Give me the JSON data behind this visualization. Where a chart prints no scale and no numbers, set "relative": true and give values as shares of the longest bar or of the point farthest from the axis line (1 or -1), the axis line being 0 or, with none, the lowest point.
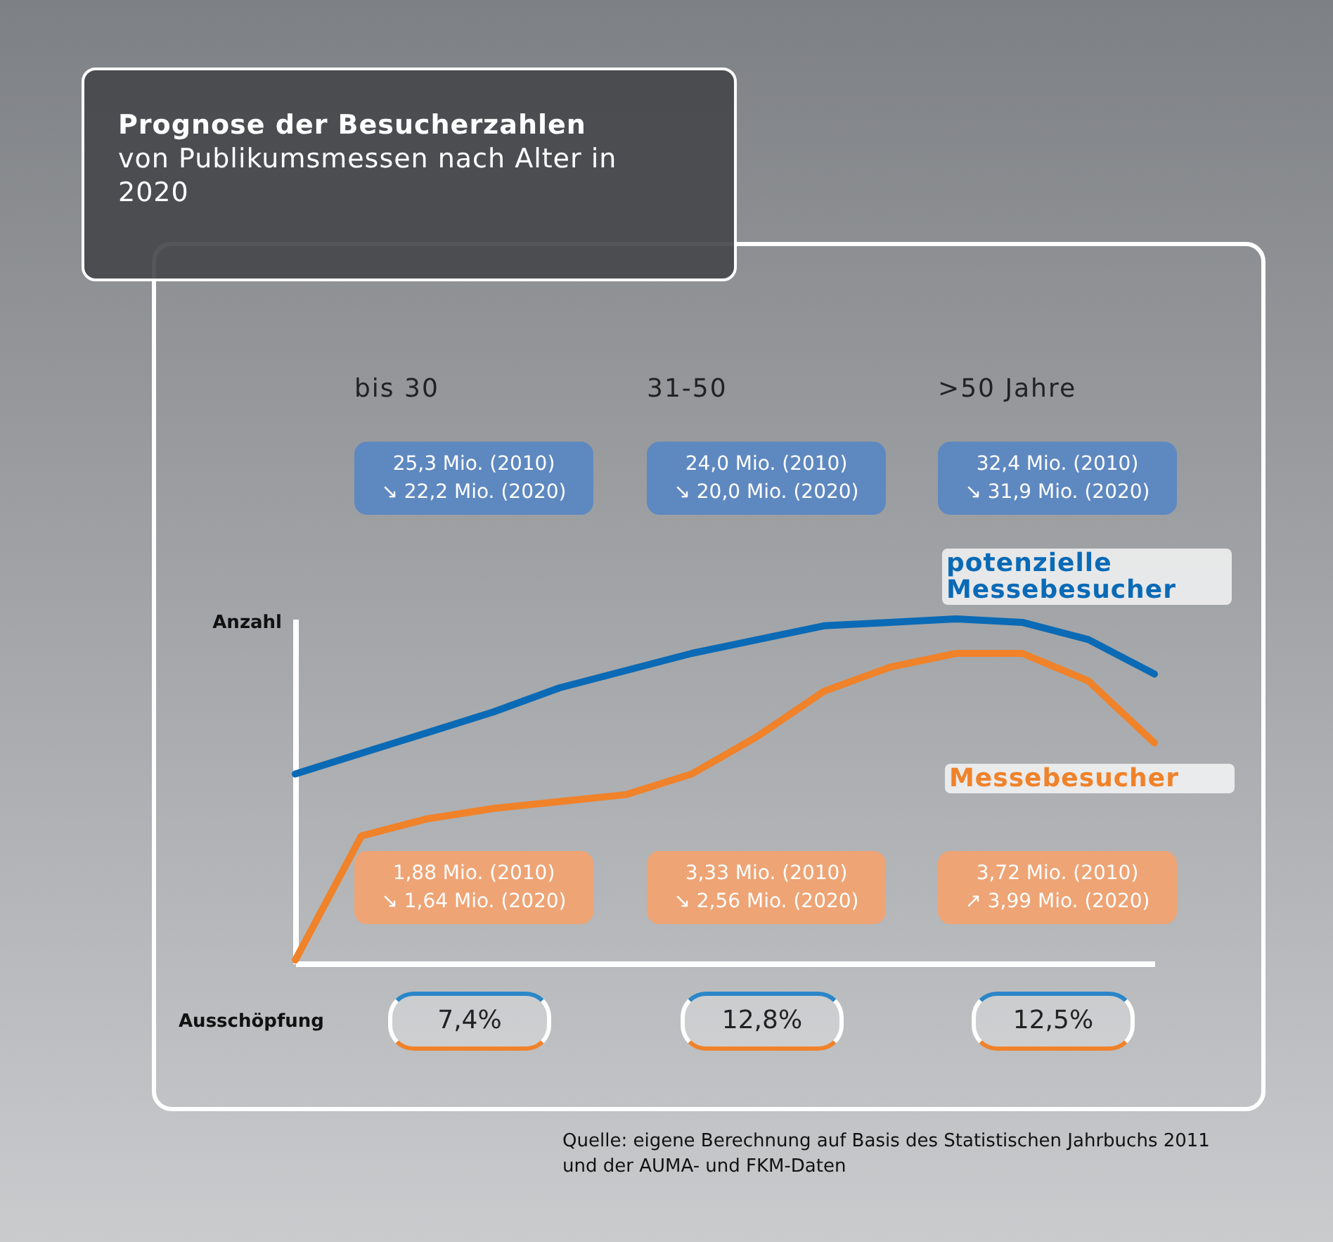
{
  "chart_data": {
    "type": "line",
    "relative": true,
    "title": "Prognose der Besucherzahlen",
    "subtitle": "von Publikumsmessen nach Alter in 2020",
    "ylabel": "Anzahl",
    "categories": [
      null,
      null,
      null,
      null,
      null,
      null,
      null,
      null,
      null,
      null,
      null,
      null,
      null,
      null
    ],
    "series": [
      {
        "name": "potenzielle Messebesucher",
        "color": "#0a6ab6",
        "values": [
          0.55,
          0.61,
          0.67,
          0.73,
          0.8,
          0.85,
          0.9,
          0.94,
          0.98,
          0.99,
          1.0,
          0.99,
          0.94,
          0.84
        ]
      },
      {
        "name": "Messebesucher",
        "color": "#f0822a",
        "values": [
          0.01,
          0.37,
          0.42,
          0.45,
          0.47,
          0.49,
          0.55,
          0.66,
          0.79,
          0.86,
          0.9,
          0.9,
          0.82,
          0.64
        ]
      }
    ],
    "annotations": [
      "bis 30",
      "31-50",
      ">50 Jahre",
      "25,3 Mio. (2010)\n↘ 22,2 Mio. (2020)",
      "24,0 Mio. (2010)\n↘ 20,0 Mio. (2020)",
      "32,4 Mio. (2010)\n↘ 31,9 Mio. (2020)",
      "1,88 Mio. (2010)\n↘ 1,64 Mio. (2020)",
      "3,33 Mio. (2010)\n↘ 2,56 Mio. (2020)",
      "3,72 Mio. (2010)\n↗ 3,99 Mio. (2020)",
      "Ausschöpfung",
      "7,4%",
      "12,8%",
      "12,5%",
      "Quelle: eigene Berechnung auf Basis des Statistischen Jahrbuchs 2011\nund der AUMA- und FKM-Daten"
    ]
  }
}
